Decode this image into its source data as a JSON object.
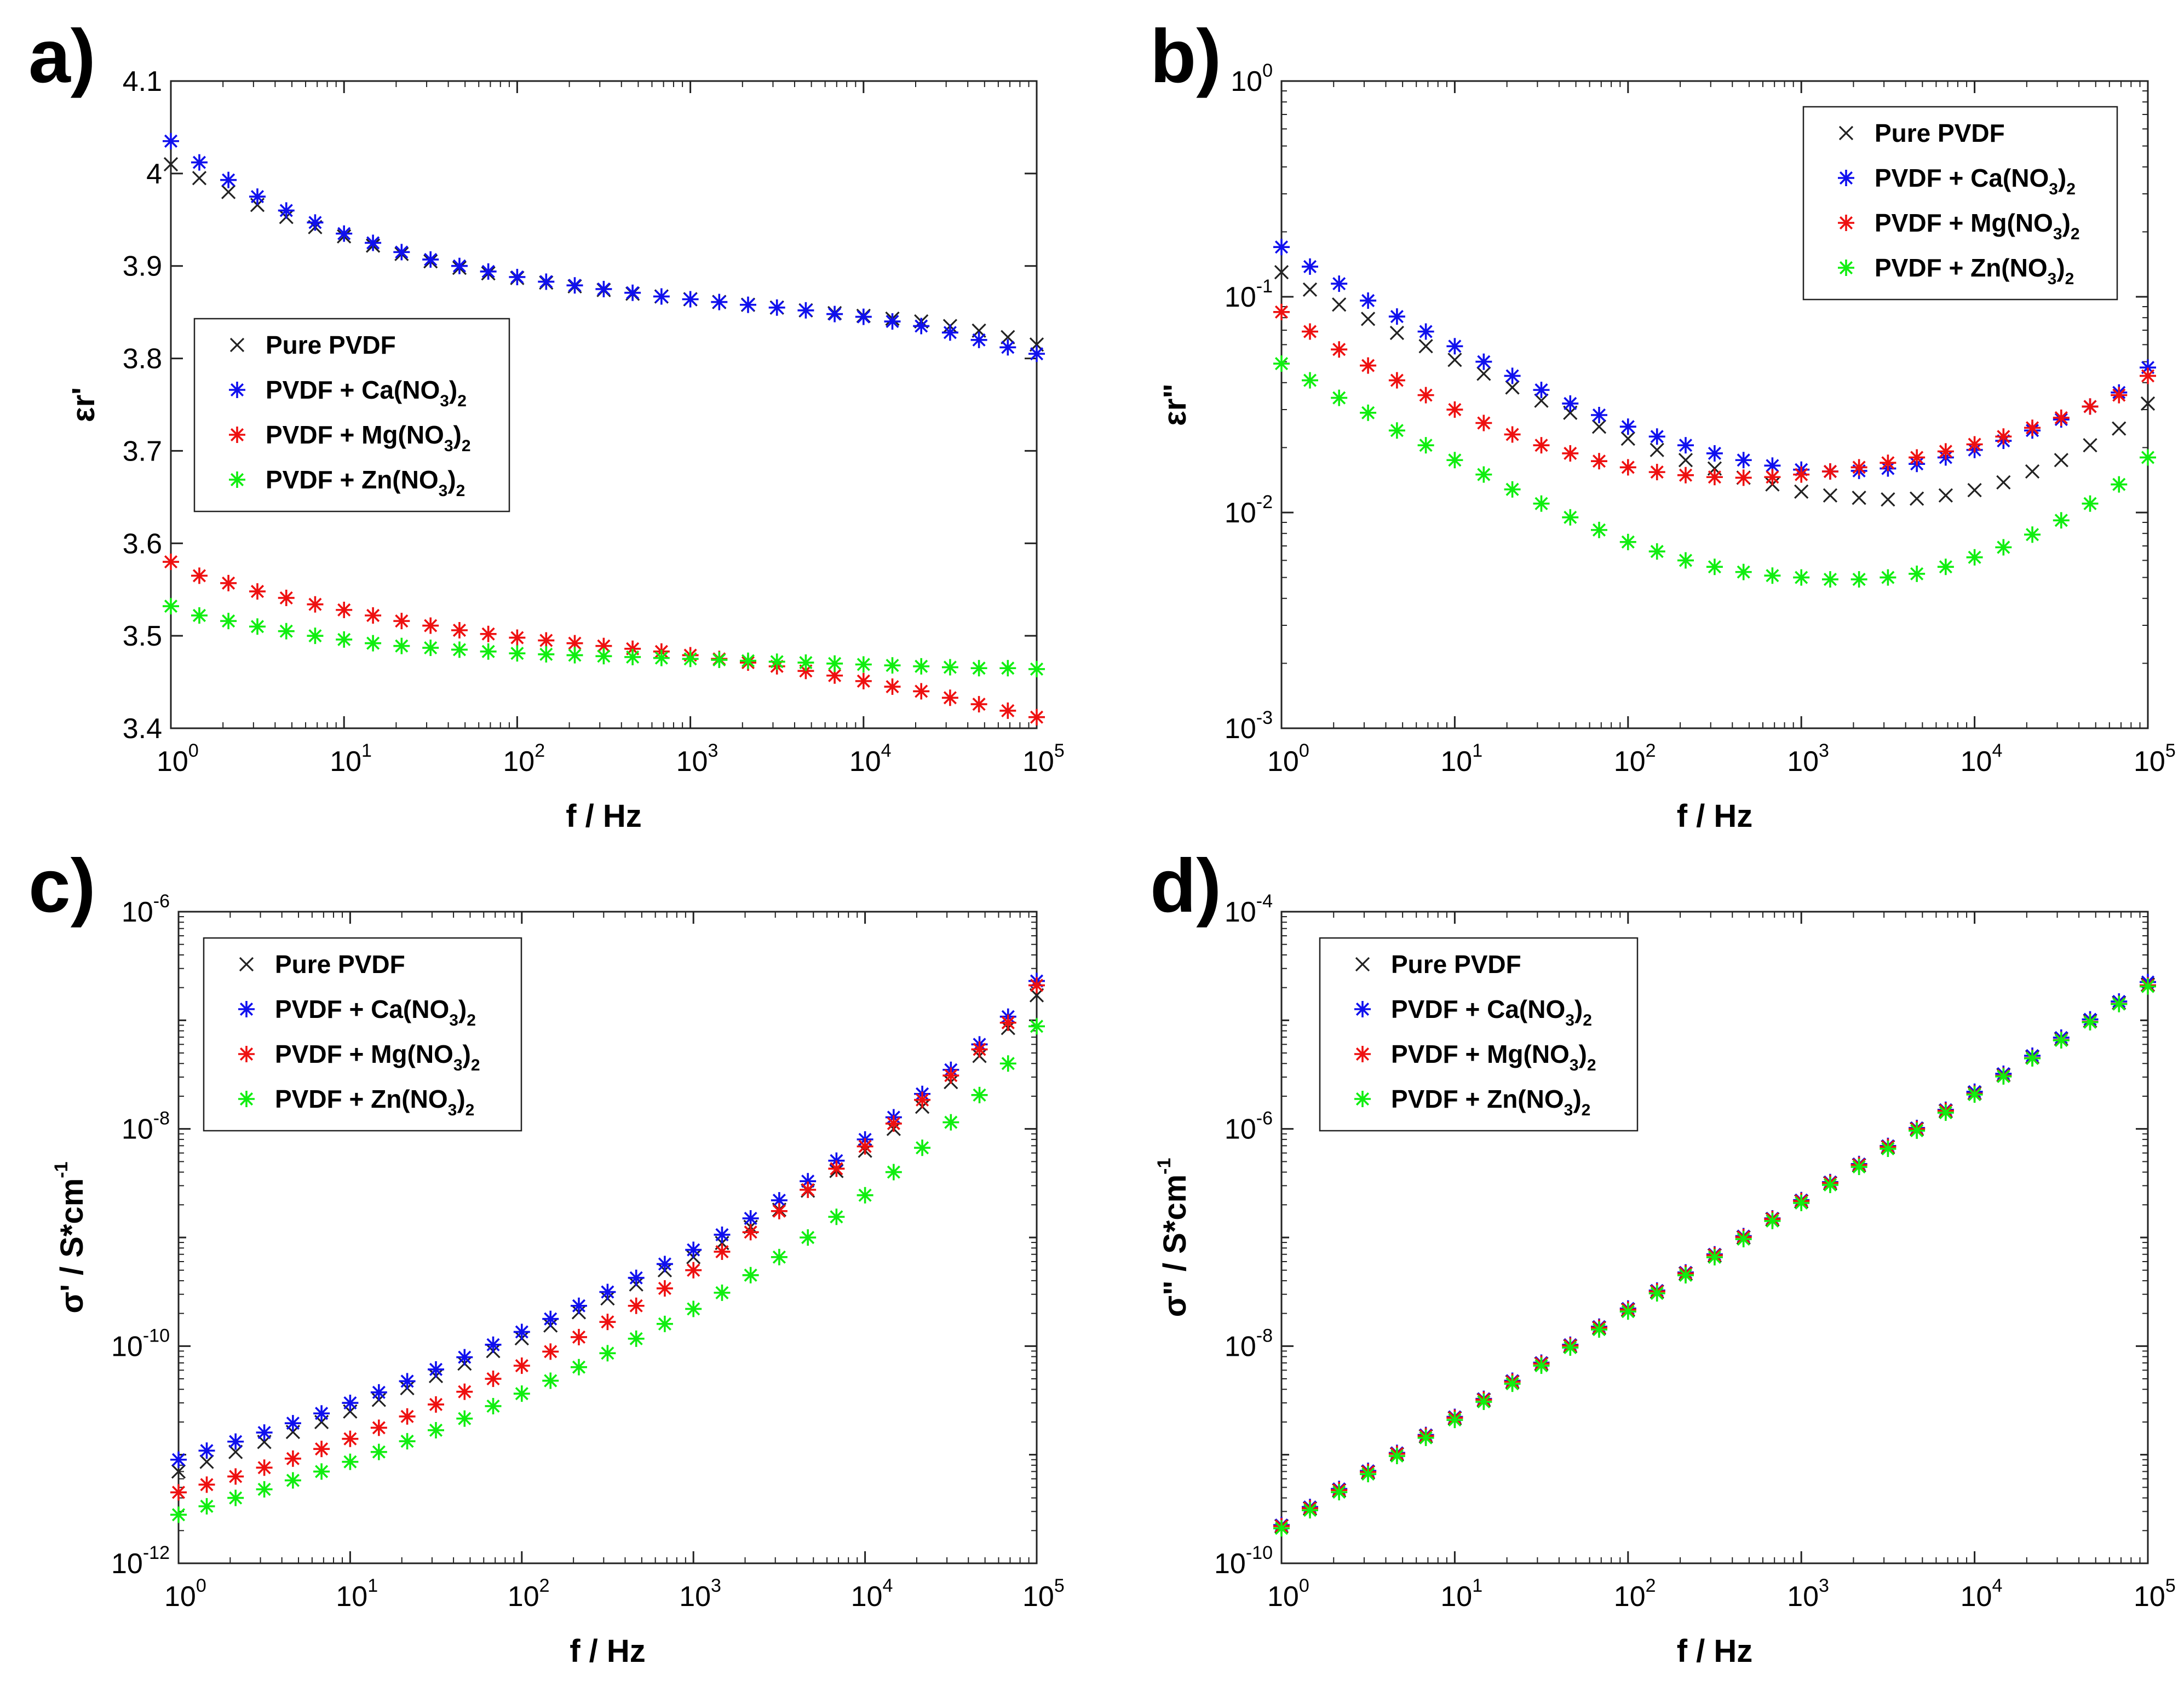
{
  "chart_data": [
    {
      "panel": "a)",
      "type": "scatter",
      "title": "",
      "xlabel": "f / Hz",
      "ylabel": "εr'",
      "xscale": "log",
      "yscale": "linear",
      "xlim": [
        1,
        100000
      ],
      "ylim": [
        3.4,
        4.1
      ],
      "yticks": [
        3.4,
        3.5,
        3.6,
        3.7,
        3.8,
        3.9,
        4,
        4.1
      ],
      "ytick_labels": [
        "3.4",
        "3.5",
        "3.6",
        "3.7",
        "3.8",
        "3.9",
        "4",
        "4.1"
      ],
      "legend_position": "center-left",
      "x": [
        1,
        1.46,
        2.15,
        3.16,
        4.64,
        6.81,
        10,
        14.7,
        21.5,
        31.6,
        46.4,
        68.1,
        100,
        147,
        215,
        316,
        464,
        681,
        1000,
        1468,
        2154,
        3162,
        4642,
        6813,
        10000,
        14678,
        21544,
        31623,
        46416,
        68129,
        100000
      ],
      "series": [
        {
          "name": "Pure PVDF",
          "marker": "x",
          "color": "#222222",
          "values": [
            4.01,
            3.995,
            3.98,
            3.966,
            3.953,
            3.942,
            3.932,
            3.922,
            3.913,
            3.905,
            3.898,
            3.892,
            3.887,
            3.882,
            3.878,
            3.874,
            3.87,
            3.867,
            3.864,
            3.861,
            3.858,
            3.855,
            3.852,
            3.849,
            3.846,
            3.843,
            3.84,
            3.835,
            3.83,
            3.823,
            3.815
          ]
        },
        {
          "name": "PVDF + Ca(NO3)2",
          "marker": "*",
          "color": "#1010ee",
          "values": [
            4.035,
            4.012,
            3.993,
            3.975,
            3.96,
            3.947,
            3.935,
            3.925,
            3.915,
            3.907,
            3.9,
            3.894,
            3.888,
            3.883,
            3.879,
            3.875,
            3.871,
            3.867,
            3.864,
            3.861,
            3.858,
            3.855,
            3.852,
            3.848,
            3.845,
            3.84,
            3.835,
            3.828,
            3.82,
            3.812,
            3.805
          ]
        },
        {
          "name": "PVDF + Mg(NO3)2",
          "marker": "*",
          "color": "#ee1010",
          "values": [
            3.58,
            3.565,
            3.557,
            3.548,
            3.541,
            3.534,
            3.528,
            3.522,
            3.516,
            3.511,
            3.506,
            3.502,
            3.498,
            3.495,
            3.492,
            3.489,
            3.486,
            3.483,
            3.479,
            3.475,
            3.471,
            3.467,
            3.462,
            3.457,
            3.451,
            3.445,
            3.44,
            3.433,
            3.426,
            3.419,
            3.412
          ]
        },
        {
          "name": "PVDF + Zn(NO3)2",
          "marker": "*",
          "color": "#10ee10",
          "values": [
            3.532,
            3.522,
            3.516,
            3.51,
            3.505,
            3.5,
            3.496,
            3.492,
            3.489,
            3.487,
            3.485,
            3.483,
            3.481,
            3.48,
            3.479,
            3.478,
            3.477,
            3.476,
            3.475,
            3.474,
            3.473,
            3.472,
            3.471,
            3.47,
            3.469,
            3.468,
            3.467,
            3.466,
            3.465,
            3.465,
            3.464
          ]
        }
      ]
    },
    {
      "panel": "b)",
      "type": "scatter",
      "title": "",
      "xlabel": "f / Hz",
      "ylabel": "εr\"",
      "xscale": "log",
      "yscale": "log",
      "xlim": [
        1,
        100000
      ],
      "ylim": [
        0.001,
        1
      ],
      "ytick_exponents": [
        "-3",
        "-2",
        "-1",
        "0"
      ],
      "legend_position": "top-right",
      "x": [
        1,
        1.46,
        2.15,
        3.16,
        4.64,
        6.81,
        10,
        14.7,
        21.5,
        31.6,
        46.4,
        68.1,
        100,
        147,
        215,
        316,
        464,
        681,
        1000,
        1468,
        2154,
        3162,
        4642,
        6813,
        10000,
        14678,
        21544,
        31623,
        46416,
        68129,
        100000
      ],
      "series": [
        {
          "name": "Pure PVDF",
          "marker": "x",
          "color": "#222222",
          "values": [
            0.13,
            0.108,
            0.092,
            0.079,
            0.068,
            0.059,
            0.051,
            0.044,
            0.038,
            0.033,
            0.029,
            0.025,
            0.022,
            0.0195,
            0.0175,
            0.016,
            0.0145,
            0.0135,
            0.0125,
            0.012,
            0.0117,
            0.0115,
            0.0116,
            0.012,
            0.0127,
            0.0138,
            0.0155,
            0.0175,
            0.0205,
            0.0245,
            0.032
          ]
        },
        {
          "name": "PVDF + Ca(NO3)2",
          "marker": "*",
          "color": "#1010ee",
          "values": [
            0.17,
            0.138,
            0.115,
            0.096,
            0.081,
            0.069,
            0.059,
            0.05,
            0.043,
            0.037,
            0.032,
            0.0283,
            0.025,
            0.0225,
            0.0205,
            0.0188,
            0.0175,
            0.0165,
            0.0158,
            0.0155,
            0.0156,
            0.016,
            0.0168,
            0.018,
            0.0195,
            0.0215,
            0.024,
            0.027,
            0.031,
            0.036,
            0.047
          ]
        },
        {
          "name": "PVDF + Mg(NO3)2",
          "marker": "*",
          "color": "#ee1010",
          "values": [
            0.085,
            0.069,
            0.057,
            0.048,
            0.041,
            0.035,
            0.03,
            0.026,
            0.023,
            0.0205,
            0.0188,
            0.0173,
            0.0162,
            0.0154,
            0.0149,
            0.0146,
            0.0145,
            0.0146,
            0.015,
            0.0155,
            0.0162,
            0.017,
            0.018,
            0.0192,
            0.0207,
            0.0225,
            0.0247,
            0.0275,
            0.031,
            0.035,
            0.043
          ]
        },
        {
          "name": "PVDF + Zn(NO3)2",
          "marker": "*",
          "color": "#10ee10",
          "values": [
            0.049,
            0.041,
            0.034,
            0.029,
            0.024,
            0.0205,
            0.0175,
            0.015,
            0.0128,
            0.011,
            0.0095,
            0.0083,
            0.0073,
            0.0066,
            0.006,
            0.0056,
            0.0053,
            0.0051,
            0.005,
            0.0049,
            0.0049,
            0.005,
            0.0052,
            0.0056,
            0.0062,
            0.0069,
            0.0079,
            0.0092,
            0.011,
            0.0135,
            0.018
          ]
        }
      ]
    },
    {
      "panel": "c)",
      "type": "scatter",
      "title": "",
      "xlabel": "f / Hz",
      "ylabel": "σ' / S*cm",
      "ylabel_sup": "-1",
      "xscale": "log",
      "yscale": "log",
      "xlim": [
        1,
        100000
      ],
      "ylim": [
        1e-12,
        1e-06
      ],
      "ytick_exponents": [
        "-12",
        "-10",
        "-8",
        "-6"
      ],
      "legend_position": "top-left",
      "x": [
        1,
        1.46,
        2.15,
        3.16,
        4.64,
        6.81,
        10,
        14.7,
        21.5,
        31.6,
        46.4,
        68.1,
        100,
        147,
        215,
        316,
        464,
        681,
        1000,
        1468,
        2154,
        3162,
        4642,
        6813,
        10000,
        14678,
        21544,
        31623,
        46416,
        68129,
        100000
      ],
      "series": [
        {
          "name": "Pure PVDF",
          "marker": "x",
          "color": "#222222",
          "values": [
            7e-12,
            8.6e-12,
            1.06e-11,
            1.31e-11,
            1.62e-11,
            2e-11,
            2.5e-11,
            3.2e-11,
            4.1e-11,
            5.3e-11,
            6.9e-11,
            9e-11,
            1.18e-10,
            1.55e-10,
            2.05e-10,
            2.75e-10,
            3.7e-10,
            5e-10,
            6.6e-10,
            8.9e-10,
            1.25e-09,
            1.8e-09,
            2.7e-09,
            4.1e-09,
            6.3e-09,
            1e-08,
            1.6e-08,
            2.7e-08,
            4.7e-08,
            8.5e-08,
            1.7e-07
          ]
        },
        {
          "name": "PVDF + Ca(NO3)2",
          "marker": "*",
          "color": "#1010ee",
          "values": [
            9e-12,
            1.09e-11,
            1.32e-11,
            1.6e-11,
            1.95e-11,
            2.4e-11,
            3e-11,
            3.75e-11,
            4.75e-11,
            6.1e-11,
            7.9e-11,
            1.03e-10,
            1.35e-10,
            1.78e-10,
            2.35e-10,
            3.15e-10,
            4.25e-10,
            5.7e-10,
            7.7e-10,
            1.06e-09,
            1.5e-09,
            2.2e-09,
            3.3e-09,
            5.1e-09,
            8e-09,
            1.28e-08,
            2.1e-08,
            3.5e-08,
            6e-08,
            1.08e-07,
            2.3e-07
          ]
        },
        {
          "name": "PVDF + Mg(NO3)2",
          "marker": "*",
          "color": "#ee1010",
          "values": [
            4.5e-12,
            5.3e-12,
            6.3e-12,
            7.6e-12,
            9.2e-12,
            1.13e-11,
            1.4e-11,
            1.77e-11,
            2.25e-11,
            2.9e-11,
            3.8e-11,
            5e-11,
            6.6e-11,
            8.9e-11,
            1.21e-10,
            1.67e-10,
            2.35e-10,
            3.4e-10,
            5e-10,
            7.4e-10,
            1.12e-09,
            1.75e-09,
            2.75e-09,
            4.3e-09,
            6.9e-09,
            1.12e-08,
            1.85e-08,
            3.1e-08,
            5.4e-08,
            9.5e-08,
            2.1e-07
          ]
        },
        {
          "name": "PVDF + Zn(NO3)2",
          "marker": "*",
          "color": "#10ee10",
          "values": [
            2.8e-12,
            3.35e-12,
            4e-12,
            4.8e-12,
            5.8e-12,
            7e-12,
            8.6e-12,
            1.06e-11,
            1.33e-11,
            1.68e-11,
            2.15e-11,
            2.8e-11,
            3.65e-11,
            4.8e-11,
            6.4e-11,
            8.6e-11,
            1.17e-10,
            1.6e-10,
            2.2e-10,
            3.1e-10,
            4.5e-10,
            6.6e-10,
            1e-09,
            1.55e-09,
            2.45e-09,
            4e-09,
            6.7e-09,
            1.15e-08,
            2.05e-08,
            4e-08,
            8.8e-08
          ]
        }
      ]
    },
    {
      "panel": "d)",
      "type": "scatter",
      "title": "",
      "xlabel": "f / Hz",
      "ylabel": "σ\" / S*cm",
      "ylabel_sup": "-1",
      "xscale": "log",
      "yscale": "log",
      "xlim": [
        1,
        100000
      ],
      "ylim": [
        1e-10,
        0.0001
      ],
      "ytick_exponents": [
        "-10",
        "-8",
        "-6",
        "-4"
      ],
      "legend_position": "top-left",
      "x": [
        1,
        1.46,
        2.15,
        3.16,
        4.64,
        6.81,
        10,
        14.7,
        21.5,
        31.6,
        46.4,
        68.1,
        100,
        147,
        215,
        316,
        464,
        681,
        1000,
        1468,
        2154,
        3162,
        4642,
        6813,
        10000,
        14678,
        21544,
        31623,
        46416,
        68129,
        100000
      ],
      "series": [
        {
          "name": "Pure PVDF",
          "marker": "x",
          "color": "#222222",
          "values": [
            2.2e-10,
            3.2e-10,
            4.7e-10,
            6.9e-10,
            1.01e-09,
            1.48e-09,
            2.17e-09,
            3.19e-09,
            4.67e-09,
            6.86e-09,
            1e-08,
            1.47e-08,
            2.16e-08,
            3.17e-08,
            4.65e-08,
            6.83e-08,
            1e-07,
            1.47e-07,
            2.15e-07,
            3.16e-07,
            4.63e-07,
            6.8e-07,
            9.97e-07,
            1.46e-06,
            2.14e-06,
            3.14e-06,
            4.6e-06,
            6.74e-06,
            9.9e-06,
            1.45e-05,
            2.13e-05
          ]
        },
        {
          "name": "PVDF + Ca(NO3)2",
          "marker": "*",
          "color": "#1010ee",
          "values": [
            2.25e-10,
            3.3e-10,
            4.84e-10,
            7.1e-10,
            1.04e-09,
            1.52e-09,
            2.23e-09,
            3.27e-09,
            4.8e-09,
            7.04e-09,
            1.03e-08,
            1.51e-08,
            2.22e-08,
            3.25e-08,
            4.77e-08,
            7e-08,
            1.03e-07,
            1.5e-07,
            2.21e-07,
            3.24e-07,
            4.75e-07,
            6.97e-07,
            1.02e-06,
            1.5e-06,
            2.2e-06,
            3.22e-06,
            4.72e-06,
            6.93e-06,
            1.02e-05,
            1.49e-05,
            2.25e-05
          ]
        },
        {
          "name": "PVDF + Mg(NO3)2",
          "marker": "*",
          "color": "#ee1010",
          "values": [
            2.2e-10,
            3.22e-10,
            4.73e-10,
            6.94e-10,
            1.02e-09,
            1.49e-09,
            2.19e-09,
            3.21e-09,
            4.7e-09,
            6.9e-09,
            1.01e-08,
            1.48e-08,
            2.17e-08,
            3.19e-08,
            4.68e-08,
            6.87e-08,
            1.01e-07,
            1.48e-07,
            2.17e-07,
            3.18e-07,
            4.66e-07,
            6.84e-07,
            1e-06,
            1.47e-06,
            2.11e-06,
            3.09e-06,
            4.5e-06,
            6.6e-06,
            9.7e-06,
            1.42e-05,
            2.1e-05
          ]
        },
        {
          "name": "PVDF + Zn(NO3)2",
          "marker": "*",
          "color": "#10ee10",
          "values": [
            2.1e-10,
            3.08e-10,
            4.52e-10,
            6.63e-10,
            9.73e-10,
            1.43e-09,
            2.09e-09,
            3.07e-09,
            4.5e-09,
            6.6e-09,
            9.69e-09,
            1.42e-08,
            2.08e-08,
            3.06e-08,
            4.49e-08,
            6.58e-08,
            9.66e-08,
            1.42e-07,
            2.08e-07,
            3.05e-07,
            4.47e-07,
            6.56e-07,
            9.63e-07,
            1.41e-06,
            2.07e-06,
            3.04e-06,
            4.46e-06,
            6.54e-06,
            9.6e-06,
            1.41e-05,
            2.05e-05
          ]
        }
      ]
    }
  ],
  "shared": {
    "xtick_base": "10",
    "xtick_exponents": [
      "0",
      "1",
      "2",
      "3",
      "4",
      "5"
    ],
    "legend_entries": [
      {
        "label": "Pure PVDF",
        "marker": "x",
        "color": "#222222"
      },
      {
        "label": "PVDF + Ca(NO",
        "sub": "3",
        "close": ")",
        "sub2": "2",
        "marker": "*",
        "color": "#1010ee"
      },
      {
        "label": "PVDF + Mg(NO",
        "sub": "3",
        "close": ")",
        "sub2": "2",
        "marker": "*",
        "color": "#ee1010"
      },
      {
        "label": "PVDF + Zn(NO",
        "sub": "3",
        "close": ")",
        "sub2": "2",
        "marker": "*",
        "color": "#10ee10"
      }
    ]
  }
}
